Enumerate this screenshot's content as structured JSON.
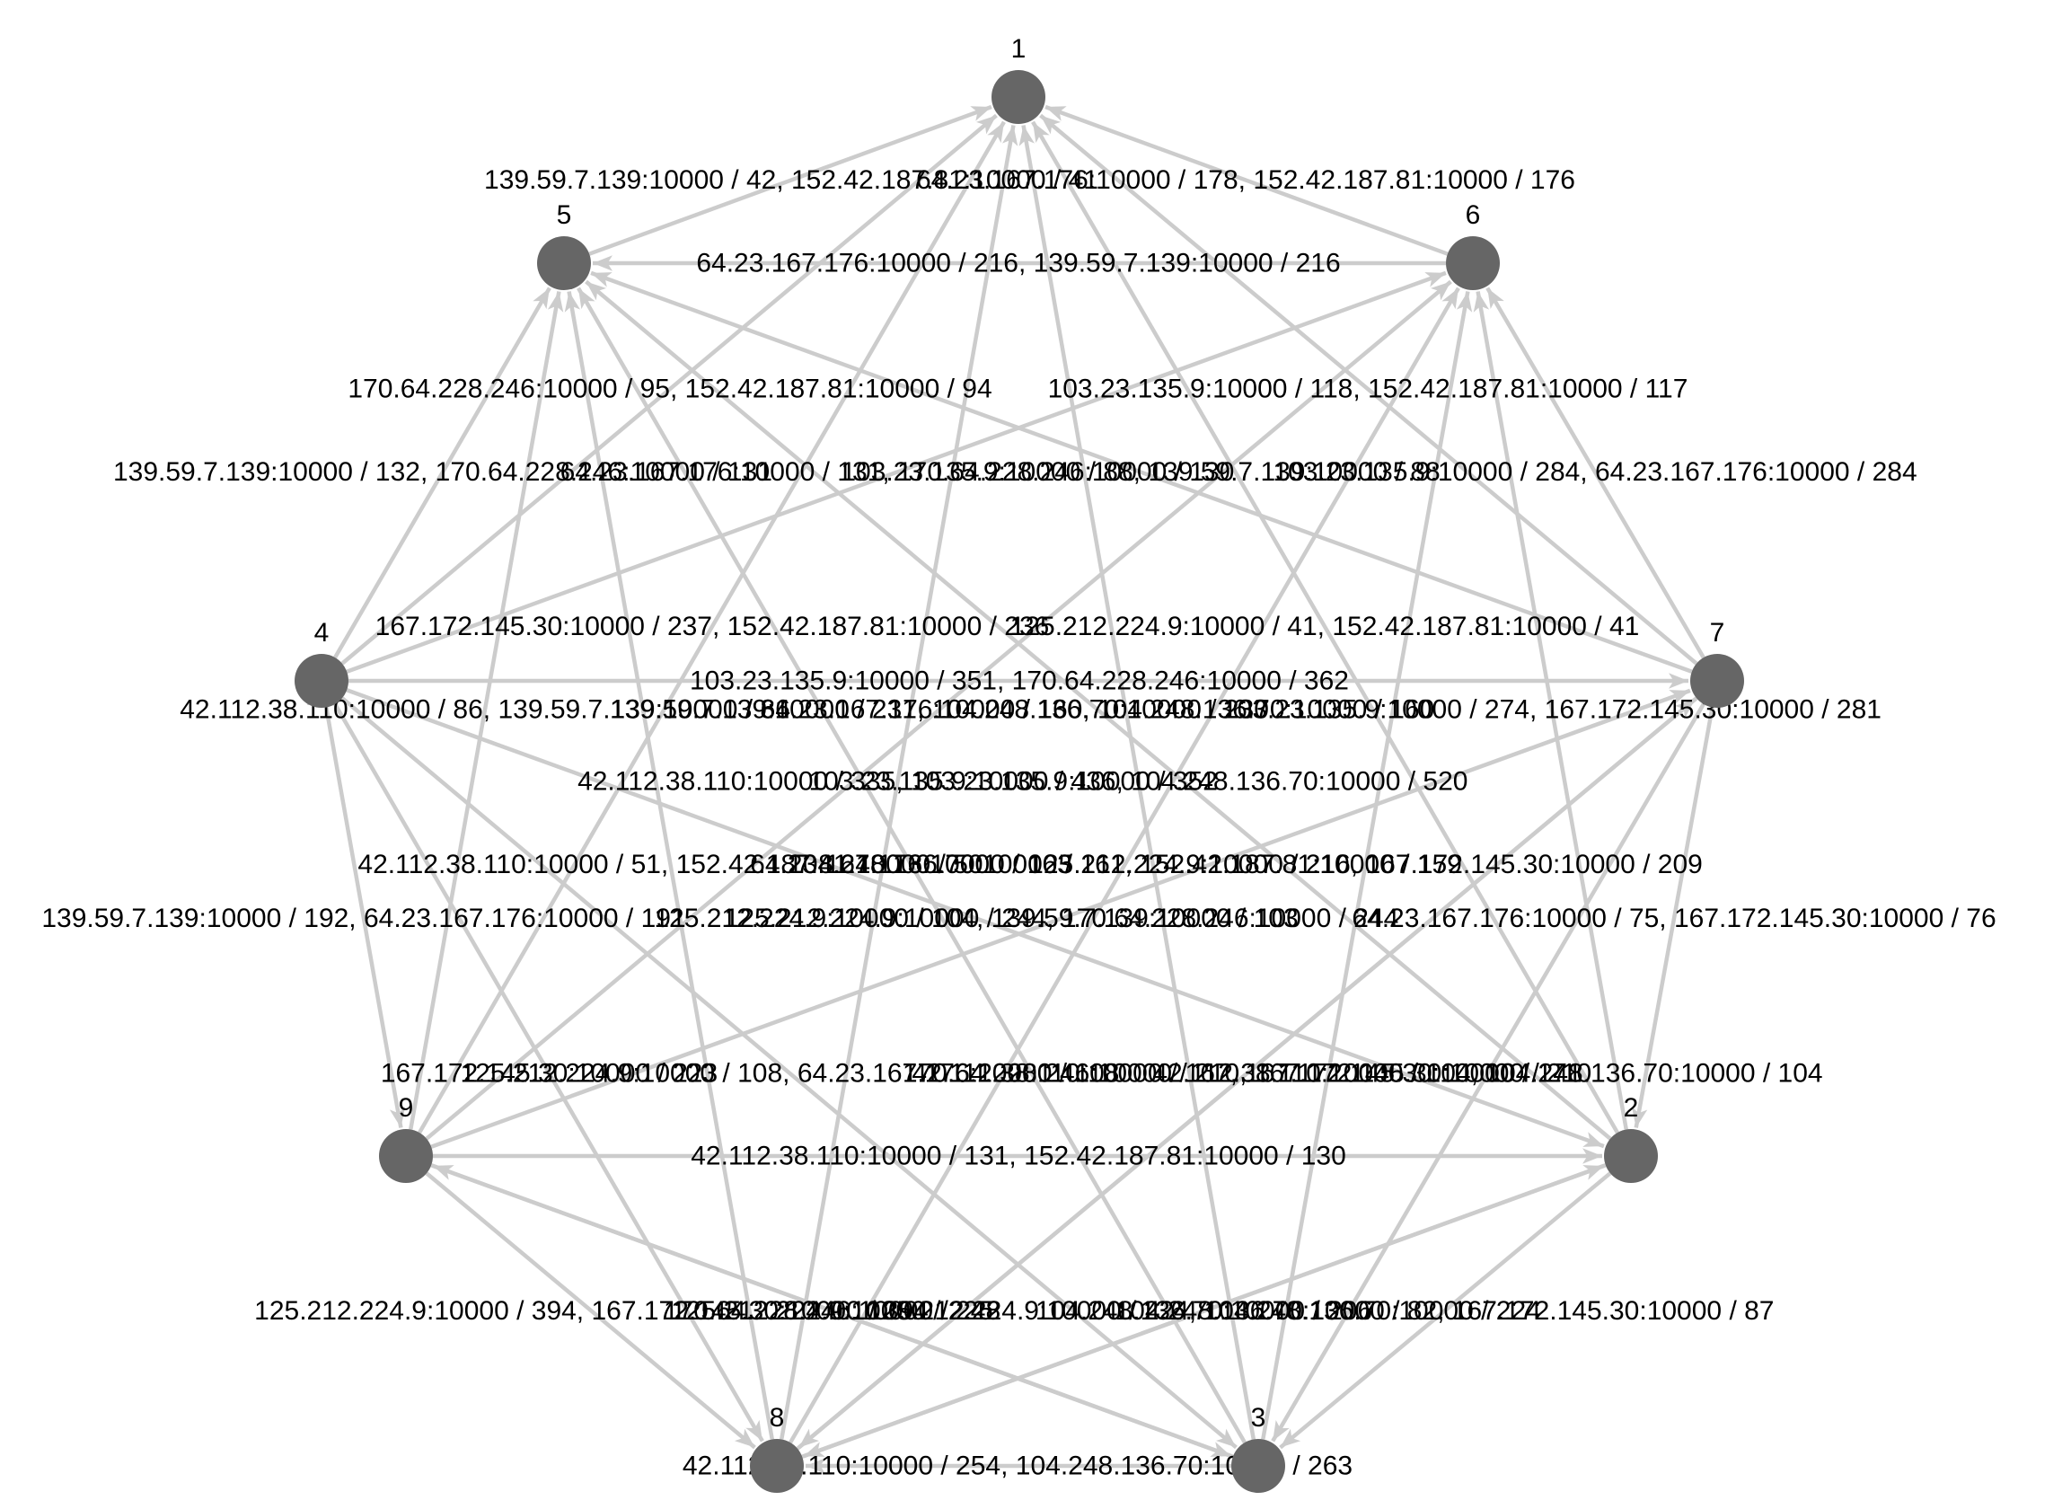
{
  "colors": {
    "node": "#666666",
    "edge": "#cccccc",
    "text": "#000000",
    "background": "#ffffff"
  },
  "nodes": [
    {
      "id": "1",
      "label": "1"
    },
    {
      "id": "2",
      "label": "2"
    },
    {
      "id": "3",
      "label": "3"
    },
    {
      "id": "4",
      "label": "4"
    },
    {
      "id": "5",
      "label": "5"
    },
    {
      "id": "6",
      "label": "6"
    },
    {
      "id": "7",
      "label": "7"
    },
    {
      "id": "8",
      "label": "8"
    },
    {
      "id": "9",
      "label": "9"
    }
  ],
  "edges": [
    {
      "from": "5",
      "to": "1",
      "label": "139.59.7.139:10000 / 42, 152.42.187.81:10000 / 41"
    },
    {
      "from": "6",
      "to": "1",
      "label": "64.23.167.176:10000 / 178, 152.42.187.81:10000 / 176"
    },
    {
      "from": "6",
      "to": "5",
      "label": "64.23.167.176:10000 / 216, 139.59.7.139:10000 / 216"
    },
    {
      "from": "4",
      "to": "1",
      "label": "170.64.228.246:10000 / 95, 152.42.187.81:10000 / 94"
    },
    {
      "from": "7",
      "to": "1",
      "label": "103.23.135.9:10000 / 118, 152.42.187.81:10000 / 117"
    },
    {
      "from": "4",
      "to": "5",
      "label": "139.59.7.139:10000 / 132, 170.64.228.246:10000 / 131"
    },
    {
      "from": "4",
      "to": "6",
      "label": "64.23.167.176:10000 / 131, 170.64.228.246:10000 / 130"
    },
    {
      "from": "7",
      "to": "5",
      "label": "103.23.135.9:10000 / 88, 139.59.7.139:10000 / 88"
    },
    {
      "from": "7",
      "to": "6",
      "label": "103.23.135.9:10000 / 284, 64.23.167.176:10000 / 284"
    },
    {
      "from": "2",
      "to": "1",
      "label": "125.212.224.9:10000 / 41, 152.42.187.81:10000 / 41"
    },
    {
      "from": "9",
      "to": "1",
      "label": "167.172.145.30:10000 / 237, 152.42.187.81:10000 / 236"
    },
    {
      "from": "4",
      "to": "7",
      "label": "103.23.135.9:10000 / 351, 170.64.228.246:10000 / 362"
    },
    {
      "from": "4",
      "to": "2",
      "label": "125.212.224.9:10000 / 104, 139.59.7.139:10000 / 103"
    },
    {
      "from": "4",
      "to": "3",
      "label": "125.212.224.9:10000 / 108, 64.23.167.176:10000 / 108"
    },
    {
      "from": "4",
      "to": "9",
      "label": "139.59.7.139:10000 / 192, 64.23.167.176:10000 / 191"
    },
    {
      "from": "4",
      "to": "8",
      "label": "167.172.145.30:10000 / 223"
    },
    {
      "from": "7",
      "to": "2",
      "label": "64.23.167.176:10000 / 75, 167.172.145.30:10000 / 76"
    },
    {
      "from": "8",
      "to": "5",
      "label": "42.112.38.110:10000 / 51, 152.42.187.81:10000 / 50"
    },
    {
      "from": "8",
      "to": "6",
      "label": "104.248.136.70:10000 / 161, 152.42.187.81:10000 / 159"
    },
    {
      "from": "9",
      "to": "5",
      "label": "42.112.38.110:10000 / 86, 139.59.7.139:10000 / 86"
    },
    {
      "from": "9",
      "to": "6",
      "label": "139.59.7.139:10000 / 231, 104.248.136.70:10000 / 230"
    },
    {
      "from": "3",
      "to": "5",
      "label": "64.23.167.176:10000 / 163"
    },
    {
      "from": "2",
      "to": "5",
      "label": "64.23.167.176:10000 / 160, 104.248.136.70:10000 / 160"
    },
    {
      "from": "9",
      "to": "7",
      "label": "125.212.224.9:10000 / 244, 170.64.228.246:10000 / 244"
    },
    {
      "from": "8",
      "to": "7",
      "label": "170.64.228.246:10000 / 210, 167.172.145.30:10000 / 210"
    },
    {
      "from": "3",
      "to": "6",
      "label": "125.212.224.9:10000 / 216, 167.172.145.30:10000 / 209"
    },
    {
      "from": "2",
      "to": "6",
      "label": "103.23.135.9:10000 / 274, 167.172.145.30:10000 / 281"
    },
    {
      "from": "9",
      "to": "2",
      "label": "42.112.38.110:10000 / 131, 152.42.187.81:10000 / 130"
    },
    {
      "from": "3",
      "to": "9",
      "label": "170.64.228.246:10000 / 248"
    },
    {
      "from": "8",
      "to": "2",
      "label": "104.248.136.70:10000 / 206"
    },
    {
      "from": "3",
      "to": "1",
      "label": "103.23.135.9:10000 / 436, 104.248.136.70:10000 / 520"
    },
    {
      "from": "8",
      "to": "1",
      "label": "42.112.38.110:10000 / 335, 103.23.135.9:10000 / 352"
    },
    {
      "from": "9",
      "to": "8",
      "label": "125.212.224.9:10000 / 394, 167.172.145.30:10000 / 394"
    },
    {
      "from": "9",
      "to": "3",
      "label": "125.212.224.9:10000 / 225"
    },
    {
      "from": "2",
      "to": "8",
      "label": "125.212.224.9:10000 / 224, 104.248.136.70:10000 / 224"
    },
    {
      "from": "7",
      "to": "3",
      "label": "42.112.38.110:10000 / 104, 104.248.136.70:10000 / 104"
    },
    {
      "from": "7",
      "to": "8",
      "label": "42.112.38.110:10000 / 167, 167.172.145.30:10000 / 171"
    },
    {
      "from": "2",
      "to": "3",
      "label": "104.248.136.70:10000 / 82, 167.172.145.30:10000 / 87"
    },
    {
      "from": "3",
      "to": "8",
      "label": "42.112.38.110:10000 / 254, 104.248.136.70:10000 / 263"
    }
  ]
}
